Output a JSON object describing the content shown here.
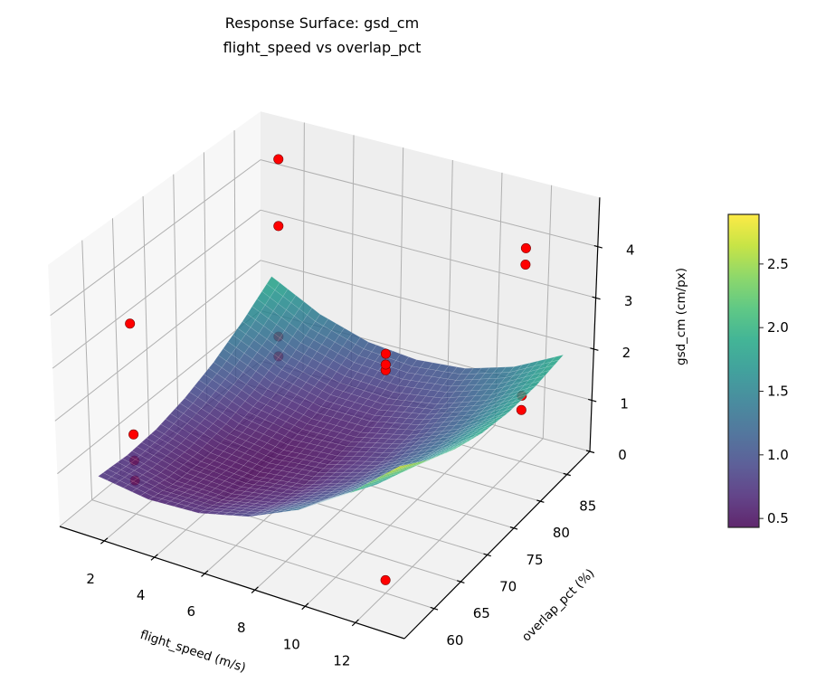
{
  "chart_data": {
    "type": "surface3d",
    "title_lines": [
      "Response Surface: gsd_cm",
      "flight_speed vs overlap_pct"
    ],
    "xlabel": "flight_speed (m/s)",
    "ylabel": "overlap_pct (%)",
    "zlabel": "gsd_cm (cm/px)",
    "xlim": [
      0.23,
      13.95
    ],
    "ylim": [
      54.4,
      89.3
    ],
    "zlim": [
      0,
      4.96
    ],
    "x_ticks": [
      2,
      4,
      6,
      8,
      10,
      12
    ],
    "y_ticks": [
      60,
      65,
      70,
      75,
      80,
      85
    ],
    "z_ticks": [
      0,
      1,
      2,
      3,
      4
    ],
    "grid": true,
    "surface": {
      "cmap": "viridis",
      "x": [
        1,
        3,
        5,
        7,
        9,
        11,
        13
      ],
      "y": [
        58,
        63,
        68,
        73,
        78,
        83,
        88
      ],
      "z": [
        [
          0.75,
          0.61,
          0.66,
          0.9,
          1.34,
          1.97,
          2.8
        ],
        [
          0.7,
          0.5,
          0.49,
          0.68,
          1.06,
          1.64,
          2.41
        ],
        [
          0.74,
          0.49,
          0.42,
          0.55,
          0.88,
          1.4,
          2.11
        ],
        [
          0.89,
          0.57,
          0.45,
          0.53,
          0.79,
          1.26,
          1.91
        ],
        [
          1.13,
          0.76,
          0.58,
          0.59,
          0.81,
          1.21,
          1.81
        ],
        [
          1.47,
          1.04,
          0.8,
          0.76,
          0.92,
          1.26,
          1.81
        ],
        [
          1.9,
          1.41,
          1.12,
          1.03,
          1.12,
          1.41,
          1.9
        ]
      ]
    },
    "scatter": {
      "color": "#ff0000",
      "points": [
        {
          "x": 2,
          "y": 60,
          "z": 0.64
        },
        {
          "x": 2,
          "y": 60,
          "z": 1.02
        },
        {
          "x": 2,
          "y": 60,
          "z": 1.52
        },
        {
          "x": 2,
          "y": 60,
          "z": 3.64
        },
        {
          "x": 2,
          "y": 85,
          "z": 0.73
        },
        {
          "x": 2,
          "y": 85,
          "z": 1.12
        },
        {
          "x": 2,
          "y": 85,
          "z": 3.3
        },
        {
          "x": 2,
          "y": 85,
          "z": 4.62
        },
        {
          "x": 8,
          "y": 78,
          "z": 1.94
        },
        {
          "x": 8,
          "y": 78,
          "z": 2.05
        },
        {
          "x": 8,
          "y": 78,
          "z": 2.26
        },
        {
          "x": 12,
          "y": 85,
          "z": 1.0
        },
        {
          "x": 12,
          "y": 85,
          "z": 1.28
        },
        {
          "x": 12,
          "y": 85,
          "z": 3.84
        },
        {
          "x": 12,
          "y": 85,
          "z": 4.16
        },
        {
          "x": 12,
          "y": 60,
          "z": 0.25
        }
      ]
    },
    "colorbar": {
      "cmap": "viridis",
      "range": [
        0.43,
        2.89
      ],
      "ticks": [
        0.5,
        1.0,
        1.5,
        2.0,
        2.5
      ],
      "tick_labels": [
        "0.5",
        "1.0",
        "1.5",
        "2.0",
        "2.5"
      ]
    }
  }
}
